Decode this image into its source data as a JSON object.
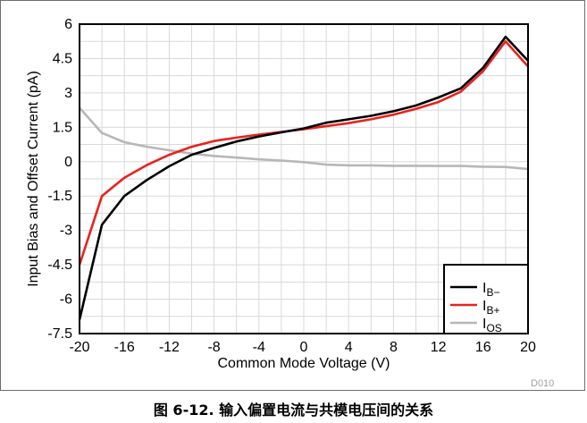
{
  "chart_data": {
    "type": "line",
    "xlabel": "Common Mode Voltage (V)",
    "ylabel": "Input Bias and Offset Current (pA)",
    "xlim": [
      -20,
      20
    ],
    "ylim": [
      -7.5,
      6
    ],
    "xticks": [
      -20,
      -16,
      -12,
      -8,
      -4,
      0,
      4,
      8,
      12,
      16,
      20
    ],
    "yticks": [
      6,
      4.5,
      3,
      1.5,
      0,
      -1.5,
      -3,
      -4.5,
      -6,
      -7.5
    ],
    "ytick_labels": [
      "6",
      "4.5",
      "3",
      "1.5",
      "0",
      "-1.5",
      "-3",
      "-4.5",
      "-6",
      "-7.5"
    ],
    "x_minor_step": 2,
    "y_minor_step": 0.75,
    "grid": true,
    "legend_position": "bottom-right",
    "series": [
      {
        "name": "I",
        "sub": "B−",
        "color": "#000000",
        "x": [
          -20,
          -18,
          -16,
          -14,
          -12,
          -10,
          -8,
          -6,
          -4,
          -2,
          0,
          2,
          4,
          6,
          8,
          10,
          12,
          14,
          16,
          18,
          20
        ],
        "y": [
          -6.9,
          -2.75,
          -1.5,
          -0.8,
          -0.2,
          0.3,
          0.6,
          0.88,
          1.1,
          1.28,
          1.45,
          1.7,
          1.85,
          2.0,
          2.2,
          2.45,
          2.8,
          3.2,
          4.1,
          5.45,
          4.4
        ]
      },
      {
        "name": "I",
        "sub": "B+",
        "color": "#e8221d",
        "x": [
          -20,
          -18,
          -16,
          -14,
          -12,
          -10,
          -8,
          -6,
          -4,
          -2,
          0,
          2,
          4,
          6,
          8,
          10,
          12,
          14,
          16,
          18,
          20
        ],
        "y": [
          -4.5,
          -1.5,
          -0.7,
          -0.15,
          0.3,
          0.65,
          0.9,
          1.05,
          1.18,
          1.3,
          1.42,
          1.55,
          1.68,
          1.85,
          2.05,
          2.3,
          2.6,
          3.05,
          3.95,
          5.25,
          4.15
        ]
      },
      {
        "name": "I",
        "sub": "OS",
        "color": "#b7b7b7",
        "x": [
          -20,
          -18,
          -16,
          -14,
          -12,
          -10,
          -8,
          -6,
          -4,
          -2,
          0,
          2,
          4,
          6,
          8,
          10,
          12,
          14,
          16,
          18,
          20
        ],
        "y": [
          2.35,
          1.25,
          0.85,
          0.65,
          0.5,
          0.35,
          0.25,
          0.18,
          0.1,
          0.05,
          -0.02,
          -0.13,
          -0.16,
          -0.16,
          -0.18,
          -0.18,
          -0.19,
          -0.19,
          -0.22,
          -0.23,
          -0.32
        ]
      }
    ]
  },
  "watermark": "D010",
  "caption": "图 6-12. 输入偏置电流与共模电压间的关系"
}
